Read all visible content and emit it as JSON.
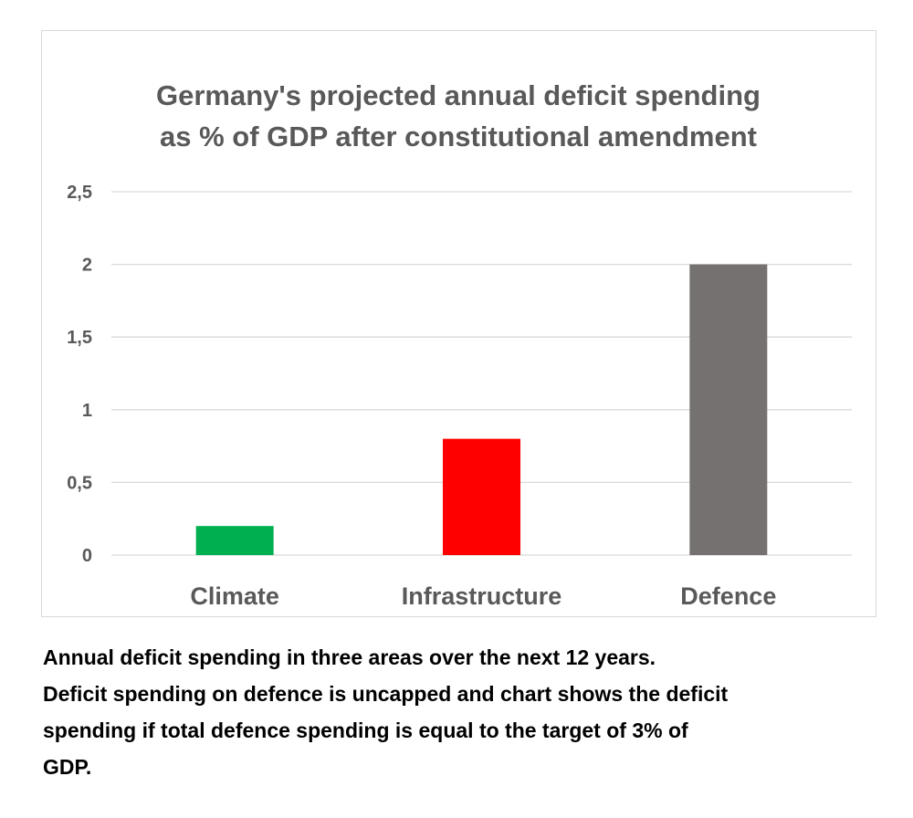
{
  "chart_data": {
    "type": "bar",
    "title_lines": [
      "Germany's projected annual deficit spending",
      "as % of GDP after constitutional amendment"
    ],
    "categories": [
      "Climate",
      "Infrastructure",
      "Defence"
    ],
    "values": [
      0.2,
      0.8,
      2.0
    ],
    "colors": [
      "#00b050",
      "#ff0000",
      "#767171"
    ],
    "ylim": [
      0,
      2.5
    ],
    "y_ticks": [
      {
        "value": 0,
        "label": "0"
      },
      {
        "value": 0.5,
        "label": "0,5"
      },
      {
        "value": 1,
        "label": "1"
      },
      {
        "value": 1.5,
        "label": "1,5"
      },
      {
        "value": 2,
        "label": "2"
      },
      {
        "value": 2.5,
        "label": "2,5"
      }
    ],
    "grid": true,
    "xlabel": "",
    "ylabel": ""
  },
  "caption_lines": [
    "Annual deficit spending in three areas over the next 12 years.",
    "Deficit spending on defence is uncapped and chart shows the deficit",
    "spending if total defence spending is equal to the target of 3% of",
    "GDP."
  ]
}
